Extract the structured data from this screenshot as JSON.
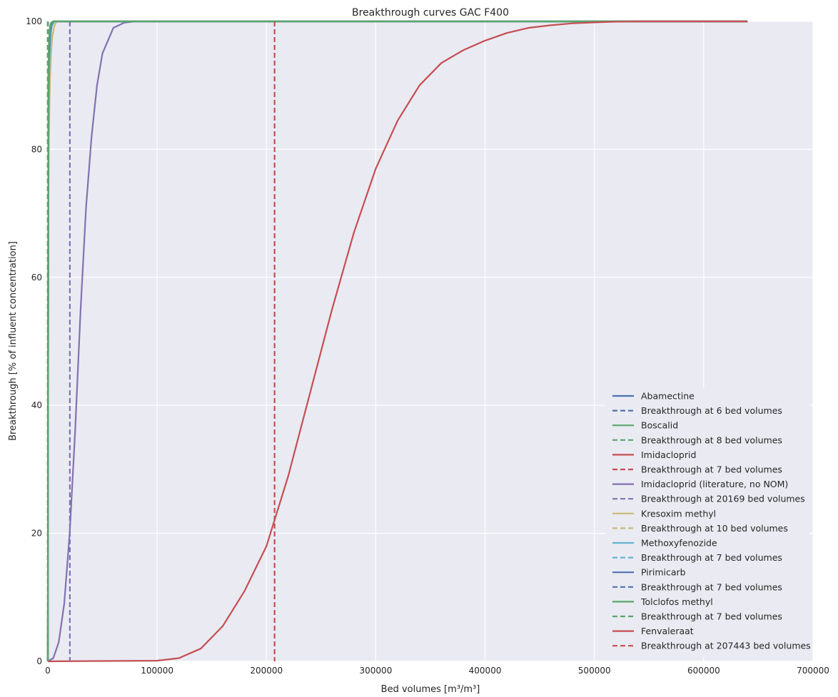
{
  "chart_data": {
    "type": "line",
    "title": "Breakthrough curves GAC F400",
    "xlabel": "Bed volumes [m³/m³]",
    "ylabel": "Breakthrough [% of influent concentration]",
    "xlim": [
      0,
      700000
    ],
    "ylim": [
      0,
      100
    ],
    "xticks": [
      0,
      100000,
      200000,
      300000,
      400000,
      500000,
      600000,
      700000
    ],
    "yticks": [
      0,
      20,
      40,
      60,
      80,
      100
    ],
    "grid": true,
    "legend_position": "lower-right",
    "series": [
      {
        "name": "Abamectine",
        "kind": "curve",
        "color": "#4c72b0",
        "x": [
          0,
          500,
          1000,
          2000,
          3000,
          5000,
          640000
        ],
        "y": [
          0,
          88,
          95,
          98.5,
          99.5,
          100,
          100
        ]
      },
      {
        "name": "Breakthrough at 6 bed volumes",
        "kind": "vline",
        "color": "#4c72b0",
        "x_value": 6
      },
      {
        "name": "Boscalid",
        "kind": "curve",
        "color": "#55a868",
        "x": [
          0,
          500,
          1000,
          2000,
          3000,
          5000,
          640000
        ],
        "y": [
          0,
          92,
          97,
          99.2,
          99.8,
          100,
          100
        ]
      },
      {
        "name": "Breakthrough at 8 bed volumes",
        "kind": "vline",
        "color": "#55a868",
        "x_value": 8
      },
      {
        "name": "Imidacloprid",
        "kind": "curve",
        "color": "#c44e52",
        "x": [
          0,
          500,
          1000,
          2000,
          3000,
          5000,
          640000
        ],
        "y": [
          0,
          90,
          96,
          99,
          99.7,
          100,
          100
        ]
      },
      {
        "name": "Breakthrough at 7 bed volumes",
        "kind": "vline",
        "color": "#c44e52",
        "x_value": 7
      },
      {
        "name": "Imidacloprid (literature, no NOM)",
        "kind": "curve",
        "color": "#8172b2",
        "x": [
          0,
          5000,
          10000,
          15000,
          20000,
          25000,
          30000,
          35000,
          40000,
          45000,
          50000,
          60000,
          70000,
          80000,
          640000
        ],
        "y": [
          0,
          0.5,
          3,
          9,
          20,
          36,
          55,
          71,
          82,
          90,
          95,
          99,
          99.8,
          100,
          100
        ]
      },
      {
        "name": "Breakthrough at 20169 bed volumes",
        "kind": "vline",
        "color": "#8172b2",
        "x_value": 20169
      },
      {
        "name": "Kresoxim methyl",
        "kind": "curve",
        "color": "#ccb974",
        "x": [
          0,
          500,
          1000,
          2000,
          3000,
          4000,
          6000,
          8000,
          640000
        ],
        "y": [
          0,
          70,
          82,
          91,
          95,
          97.5,
          99.3,
          100,
          100
        ]
      },
      {
        "name": "Breakthrough at 10 bed volumes",
        "kind": "vline",
        "color": "#ccb974",
        "x_value": 10
      },
      {
        "name": "Methoxyfenozide",
        "kind": "curve",
        "color": "#64b5cd",
        "x": [
          0,
          500,
          1000,
          2000,
          3000,
          4000,
          6000,
          640000
        ],
        "y": [
          0,
          80,
          90,
          96,
          98.5,
          99.4,
          100,
          100
        ]
      },
      {
        "name": "Breakthrough at 7 bed volumes",
        "kind": "vline",
        "color": "#64b5cd",
        "x_value": 7
      },
      {
        "name": "Pirimicarb",
        "kind": "curve",
        "color": "#4c72b0",
        "x": [
          0,
          500,
          1000,
          2000,
          3000,
          5000,
          640000
        ],
        "y": [
          0,
          86,
          94,
          98,
          99.4,
          100,
          100
        ]
      },
      {
        "name": "Breakthrough at 7 bed volumes",
        "kind": "vline",
        "color": "#4c72b0",
        "x_value": 7
      },
      {
        "name": "Tolclofos methyl",
        "kind": "curve",
        "color": "#55a868",
        "x": [
          0,
          500,
          1000,
          2000,
          3000,
          5000,
          640000
        ],
        "y": [
          0,
          89,
          96,
          99,
          99.7,
          100,
          100
        ]
      },
      {
        "name": "Breakthrough at 7 bed volumes",
        "kind": "vline",
        "color": "#55a868",
        "x_value": 7
      },
      {
        "name": "Fenvaleraat",
        "kind": "curve",
        "color": "#c44e52",
        "x": [
          0,
          100000,
          120000,
          140000,
          160000,
          180000,
          200000,
          220000,
          240000,
          260000,
          280000,
          300000,
          320000,
          340000,
          360000,
          380000,
          400000,
          420000,
          440000,
          460000,
          480000,
          500000,
          520000,
          540000,
          560000,
          640000
        ],
        "y": [
          0,
          0.1,
          0.5,
          2,
          5.5,
          11,
          18,
          29,
          42,
          55,
          67,
          77,
          84.5,
          90,
          93.5,
          95.5,
          97,
          98.2,
          99,
          99.4,
          99.7,
          99.85,
          99.95,
          100,
          100,
          100
        ]
      },
      {
        "name": "Breakthrough at 207443 bed volumes",
        "kind": "vline",
        "color": "#c44e52",
        "x_value": 207443
      }
    ]
  }
}
